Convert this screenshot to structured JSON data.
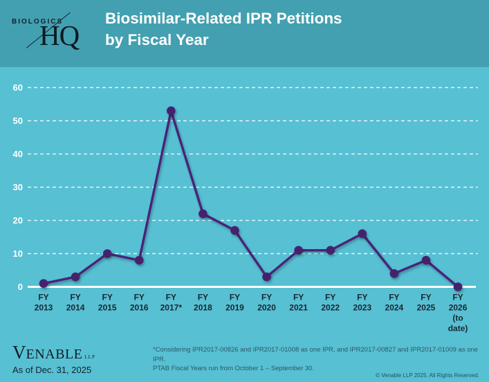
{
  "header": {
    "logo": {
      "top": "BIOLOGICS",
      "bottom": "HQ"
    },
    "title_line1": "Biosimilar-Related IPR Petitions",
    "title_line2": "by Fiscal Year"
  },
  "chart_data": {
    "type": "line",
    "title": "Biosimilar-Related IPR Petitions by Fiscal Year",
    "categories": [
      [
        "FY",
        "2013"
      ],
      [
        "FY",
        "2014"
      ],
      [
        "FY",
        "2015"
      ],
      [
        "FY",
        "2016"
      ],
      [
        "FY",
        "2017*"
      ],
      [
        "FY",
        "2018"
      ],
      [
        "FY",
        "2019"
      ],
      [
        "FY",
        "2020"
      ],
      [
        "FY",
        "2021"
      ],
      [
        "FY",
        "2022"
      ],
      [
        "FY",
        "2023"
      ],
      [
        "FY",
        "2024"
      ],
      [
        "FY",
        "2025"
      ],
      [
        "FY",
        "2026",
        "(to",
        "date)"
      ]
    ],
    "values": [
      1,
      3,
      10,
      8,
      53,
      22,
      17,
      3,
      11,
      11,
      16,
      4,
      8,
      0
    ],
    "yticks": [
      0,
      10,
      20,
      30,
      40,
      50,
      60
    ],
    "ylim": [
      0,
      65
    ],
    "grid": "horizontal white dashed",
    "legend": "none",
    "line_color": "#4a2379",
    "marker_color": "#44206e",
    "axis_color": "#ffffff",
    "tick_label_color_y": "#ffffff",
    "tick_label_color_x": "#1c2531"
  },
  "colors": {
    "header_bg": "#43a0b1",
    "chart_bg": "#57c0d3",
    "accent_purple": "#4a2379",
    "logo_text": "#13222b",
    "footnote_text": "#2b5765"
  },
  "footer": {
    "venable": {
      "initial": "V",
      "rest": "ENABLE",
      "suffix": "LLP"
    },
    "as_of": "As of Dec. 31, 2025",
    "footnote_line1": "*Considering IPR2017-00826 and IPR2017-01008 as one IPR, and IPR2017-00827 and IPR2017-01009 as one IPR.",
    "footnote_line2": "PTAB Fiscal Years run from October 1 – September 30.",
    "copyright": "© Venable LLP 2025. All Rights Reserved."
  }
}
